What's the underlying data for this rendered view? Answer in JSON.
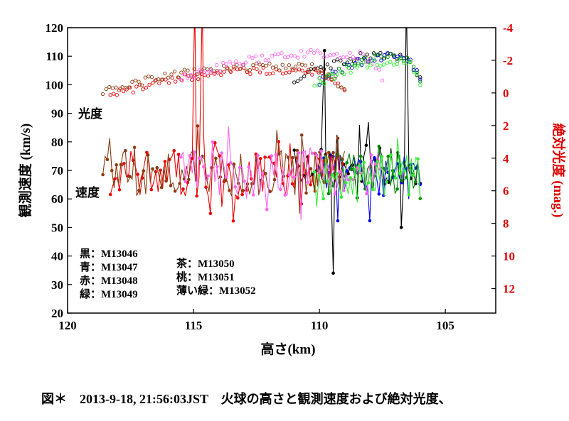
{
  "chart_data": {
    "type": "scatter",
    "x_axis": {
      "label": "高さ(km)",
      "range": [
        120,
        103
      ],
      "ticks": [
        120,
        115,
        110,
        105
      ]
    },
    "y_left": {
      "label": "観測速度 (km/s)",
      "range": [
        20,
        120
      ],
      "ticks": [
        20,
        30,
        40,
        50,
        60,
        70,
        80,
        90,
        100,
        110,
        120
      ]
    },
    "y_right": {
      "label": "絶対光度 (mag.)",
      "range": [
        13.5,
        -4
      ],
      "ticks": [
        -4,
        -2,
        0,
        2,
        4,
        6,
        8,
        10,
        12
      ],
      "color": "#e00000"
    },
    "annotations": {
      "brightness": "光度",
      "velocity": "速度"
    },
    "legend": {
      "col1": [
        "黒：M13046",
        "青：M13047",
        "赤：M13048",
        "緑：M13049"
      ],
      "col2": [
        "茶：M13050",
        "桃：M13051",
        "薄い緑：M13052"
      ]
    },
    "series": [
      {
        "id": "M13046",
        "color": "#000000",
        "hs": 111.0,
        "he": 106.0,
        "vel": 70,
        "mag": -2.1,
        "spikes": [
          [
            109.8,
            112
          ],
          [
            109.45,
            34
          ],
          [
            106.75,
            50
          ],
          [
            106.55,
            130
          ]
        ]
      },
      {
        "id": "M13047",
        "color": "#0000ee",
        "hs": 110.0,
        "he": 106.0,
        "vel": 69,
        "mag": -2.0
      },
      {
        "id": "M13048",
        "color": "#ee0000",
        "hs": 118.3,
        "he": 109.0,
        "vel": 69,
        "mag": -1.2,
        "spikes": [
          [
            114.95,
            130
          ],
          [
            114.65,
            130
          ]
        ]
      },
      {
        "id": "M13049",
        "color": "#008800",
        "hs": 110.0,
        "he": 106.0,
        "vel": 68,
        "mag": -2.0
      },
      {
        "id": "M13050",
        "color": "#8b3a0f",
        "hs": 118.6,
        "he": 109.0,
        "vel": 69,
        "mag": -1.4
      },
      {
        "id": "M13051",
        "color": "#ff66ee",
        "hs": 115.5,
        "he": 107.5,
        "vel": 69,
        "mag": -2.2
      },
      {
        "id": "M13052",
        "color": "#33ee33",
        "hs": 110.2,
        "he": 106.0,
        "vel": 68,
        "mag": -1.7
      }
    ]
  },
  "caption": "図＊　2013-9-18, 21:56:03JST　火球の高さと観測速度および絶対光度、"
}
